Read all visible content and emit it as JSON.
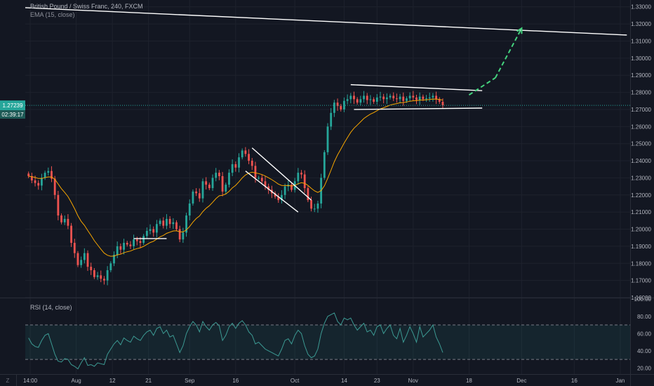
{
  "header": {
    "symbol": "British Pound / Swiss Franc, 240, FXCM",
    "ema_label": "EMA (15, close)"
  },
  "rsi_panel": {
    "label": "RSI (14, close)"
  },
  "buttons": {
    "z_label": "Z"
  },
  "colors": {
    "background": "#131722",
    "grid": "#1e222d",
    "up": "#26a69a",
    "down": "#ef5350",
    "ema": "#f7a600",
    "price_line": "#26a69a",
    "rsi": "#3c9a93",
    "trendline": "#ffffff",
    "projection": "#44d47e",
    "axis_text": "#b2b5be"
  },
  "chart_data": [
    {
      "type": "candlestick",
      "title": "British Pound / Swiss Franc, 240, FXCM",
      "indicator": "EMA (15, close)",
      "y_ticks": [
        "1.33000",
        "1.32000",
        "1.31000",
        "1.30000",
        "1.29000",
        "1.28000",
        "1.27000",
        "1.26000",
        "1.25000",
        "1.24000",
        "1.23000",
        "1.22000",
        "1.21000",
        "1.20000",
        "1.19000",
        "1.18000",
        "1.17000",
        "1.16000"
      ],
      "ylim": [
        1.16,
        1.334
      ],
      "x_ticks": [
        "14:00",
        "Aug",
        "12",
        "21",
        "Sep",
        "16",
        "Oct",
        "14",
        "23",
        "Nov",
        "18",
        "Dec",
        "16",
        "Jan"
      ],
      "x_tick_index": [
        0.5,
        14.5,
        25.5,
        36.5,
        49,
        63,
        81,
        96,
        106,
        117,
        134,
        150,
        166,
        180
      ],
      "xlim": [
        -1,
        183
      ],
      "current_price": "1.27239",
      "countdown": "02:39:17",
      "closes": [
        1.231,
        1.2285,
        1.227,
        1.2255,
        1.23,
        1.233,
        1.234,
        1.2295,
        1.22,
        1.208,
        1.204,
        1.206,
        1.202,
        1.192,
        1.186,
        1.179,
        1.182,
        1.186,
        1.178,
        1.176,
        1.172,
        1.173,
        1.171,
        1.17,
        1.176,
        1.18,
        1.185,
        1.19,
        1.188,
        1.192,
        1.191,
        1.19,
        1.194,
        1.193,
        1.192,
        1.196,
        1.199,
        1.2,
        1.198,
        1.203,
        1.205,
        1.202,
        1.206,
        1.203,
        1.204,
        1.2,
        1.194,
        1.198,
        1.208,
        1.215,
        1.222,
        1.221,
        1.218,
        1.228,
        1.226,
        1.224,
        1.23,
        1.233,
        1.231,
        1.222,
        1.226,
        1.233,
        1.238,
        1.236,
        1.242,
        1.246,
        1.244,
        1.24,
        1.237,
        1.23,
        1.23,
        1.228,
        1.225,
        1.223,
        1.221,
        1.219,
        1.217,
        1.22,
        1.225,
        1.226,
        1.223,
        1.228,
        1.233,
        1.232,
        1.224,
        1.217,
        1.212,
        1.212,
        1.215,
        1.23,
        1.245,
        1.26,
        1.268,
        1.274,
        1.272,
        1.27,
        1.275,
        1.276,
        1.278,
        1.276,
        1.274,
        1.276,
        1.278,
        1.2755,
        1.276,
        1.2745,
        1.277,
        1.2775,
        1.276,
        1.277,
        1.278,
        1.2765,
        1.276,
        1.2775,
        1.275,
        1.2765,
        1.278,
        1.277,
        1.2755,
        1.2775,
        1.276,
        1.2765,
        1.277,
        1.278,
        1.276,
        1.2745,
        1.2724
      ],
      "annotations": [
        {
          "kind": "trendline",
          "from": [
            -1,
            1.3295
          ],
          "to": [
            182,
            1.3135
          ]
        },
        {
          "kind": "trendline",
          "from": [
            32,
            1.1945
          ],
          "to": [
            42,
            1.1945
          ]
        },
        {
          "kind": "trendline",
          "from": [
            68,
            1.2475
          ],
          "to": [
            86,
            1.217
          ]
        },
        {
          "kind": "trendline",
          "from": [
            66,
            1.234
          ],
          "to": [
            82,
            1.21
          ]
        },
        {
          "kind": "trendline",
          "from": [
            98,
            1.2845
          ],
          "to": [
            138,
            1.281
          ]
        },
        {
          "kind": "trendline",
          "from": [
            99,
            1.27
          ],
          "to": [
            138,
            1.2708
          ]
        },
        {
          "kind": "projection",
          "from": [
            134,
            1.2785
          ],
          "to": [
            142,
            1.2885
          ]
        },
        {
          "kind": "projection",
          "from": [
            142,
            1.2885
          ],
          "to": [
            150,
            1.3175
          ]
        }
      ]
    },
    {
      "type": "line",
      "title": "RSI (14, close)",
      "y_ticks": [
        "100.00",
        "80.00",
        "60.00",
        "40.00",
        "20.00"
      ],
      "ylim": [
        13,
        101
      ],
      "band": [
        30,
        70
      ],
      "values": [
        55,
        48,
        45,
        44,
        52,
        58,
        60,
        48,
        36,
        28,
        27,
        31,
        30,
        24,
        22,
        19,
        26,
        32,
        23,
        24,
        22,
        26,
        25,
        24,
        36,
        42,
        48,
        52,
        47,
        55,
        52,
        50,
        57,
        54,
        52,
        58,
        62,
        64,
        58,
        66,
        68,
        60,
        64,
        56,
        58,
        48,
        38,
        46,
        60,
        68,
        74,
        70,
        62,
        74,
        68,
        64,
        70,
        73,
        69,
        52,
        58,
        68,
        72,
        66,
        72,
        75,
        70,
        62,
        58,
        48,
        50,
        46,
        42,
        40,
        38,
        36,
        34,
        42,
        52,
        54,
        48,
        58,
        64,
        60,
        46,
        36,
        32,
        34,
        42,
        60,
        72,
        80,
        82,
        84,
        74,
        70,
        78,
        76,
        78,
        70,
        64,
        68,
        72,
        62,
        64,
        58,
        68,
        70,
        60,
        66,
        70,
        58,
        54,
        66,
        50,
        58,
        68,
        60,
        50,
        68,
        56,
        60,
        64,
        70,
        56,
        48,
        38
      ]
    }
  ]
}
